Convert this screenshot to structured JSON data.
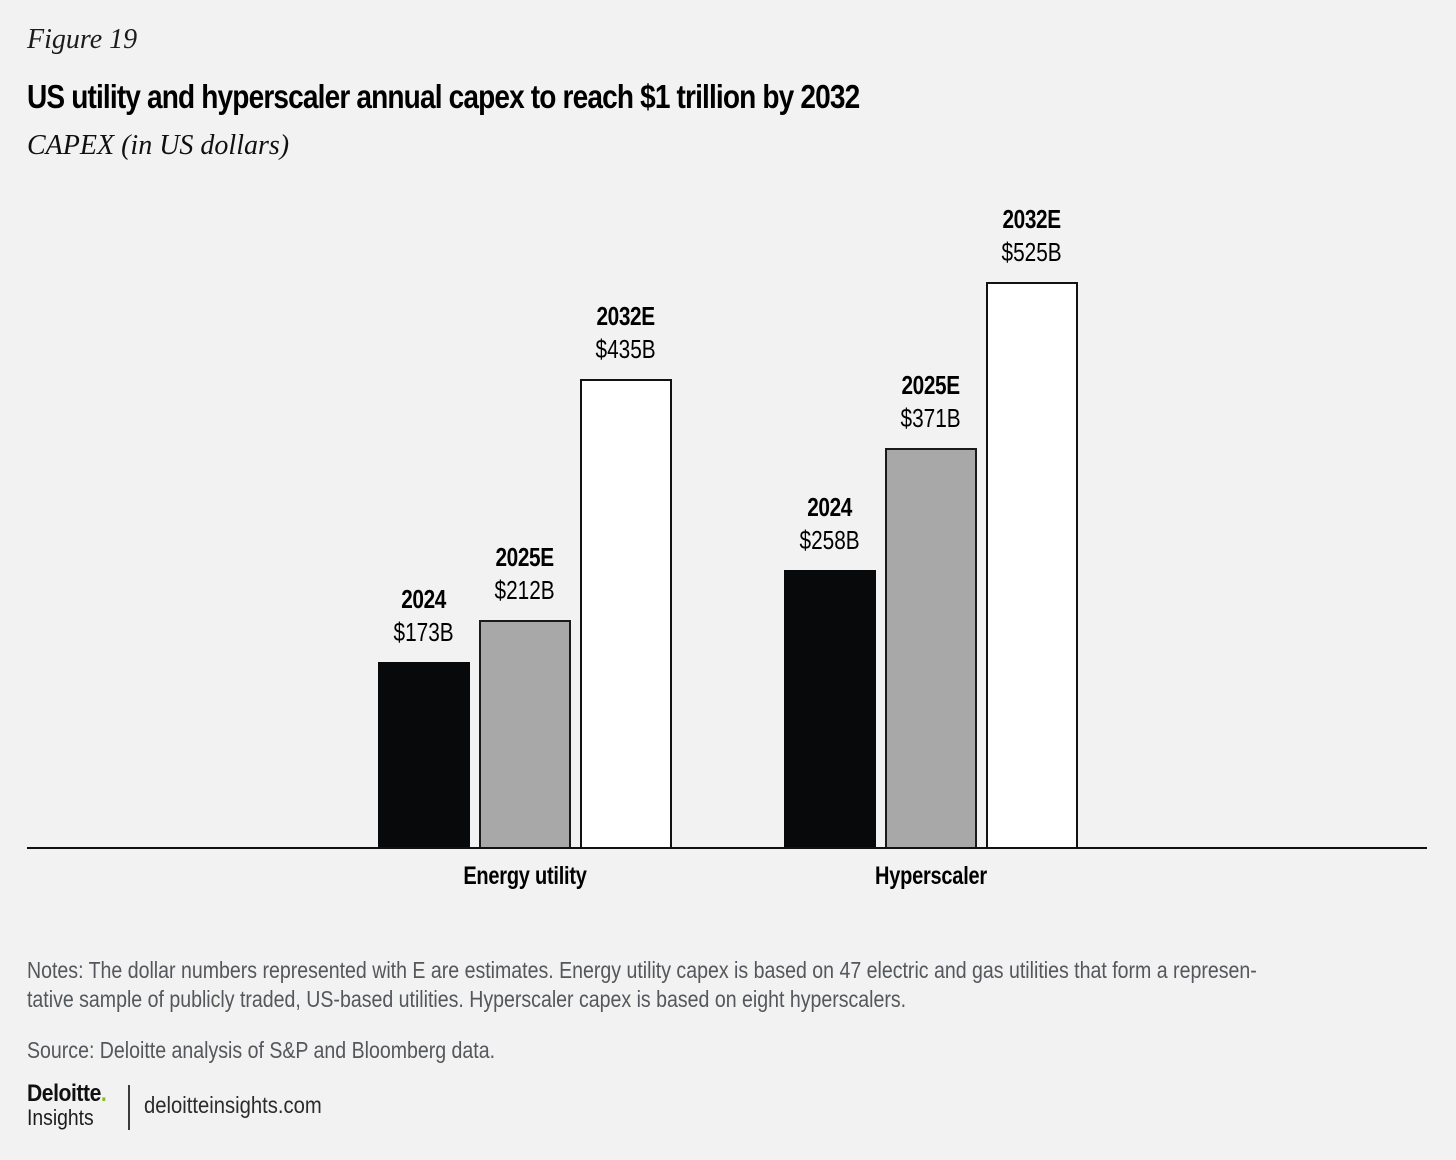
{
  "header": {
    "figure_label": "Figure 19",
    "title": "US utility and hyperscaler annual capex to reach $1 trillion by 2032",
    "subtitle": "CAPEX (in US dollars)"
  },
  "chart_data": {
    "type": "bar",
    "title": "US utility and hyperscaler annual capex to reach $1 trillion by 2032",
    "subtitle": "CAPEX (in US dollars)",
    "unit": "US dollars, billions",
    "categories": [
      "Energy utility",
      "Hyperscaler"
    ],
    "series": [
      {
        "name": "2024",
        "values": [
          173,
          258
        ],
        "labels": [
          "$173B",
          "$258B"
        ],
        "fill": "#07090b",
        "border": "#07090b",
        "estimate": false
      },
      {
        "name": "2025E",
        "values": [
          212,
          371
        ],
        "labels": [
          "$212B",
          "$371B"
        ],
        "fill": "#a8a8a8",
        "border": "#1a1a1a",
        "estimate": true
      },
      {
        "name": "2032E",
        "values": [
          435,
          525
        ],
        "labels": [
          "$435B",
          "$525B"
        ],
        "fill": "#ffffff",
        "border": "#121212",
        "estimate": true
      }
    ],
    "ylim": [
      0,
      611
    ],
    "grid": false,
    "legend": "none",
    "value_labels_position": "above-bars"
  },
  "notes": {
    "line1": "Notes: The dollar numbers represented with E are estimates. Energy utility capex is based on 47 electric and gas utilities that form a represen-",
    "line2": "tative sample of publicly traded, US-based utilities. Hyperscaler capex is based on eight hyperscalers."
  },
  "source": "Source: Deloitte analysis of S&P and Bloomberg data.",
  "footer": {
    "brand_name": "Deloitte",
    "brand_dot": ".",
    "brand_line2": "Insights",
    "site": "deloitteinsights.com"
  },
  "colors": {
    "background": "#f2f2f2",
    "bar_2024": "#07090b",
    "bar_2025e": "#a8a8a8",
    "bar_2032e": "#ffffff",
    "bar_border": "#1a1a1a",
    "axis": "#121212",
    "notes_text": "#54575b",
    "deloitte_green": "#86bc25"
  }
}
